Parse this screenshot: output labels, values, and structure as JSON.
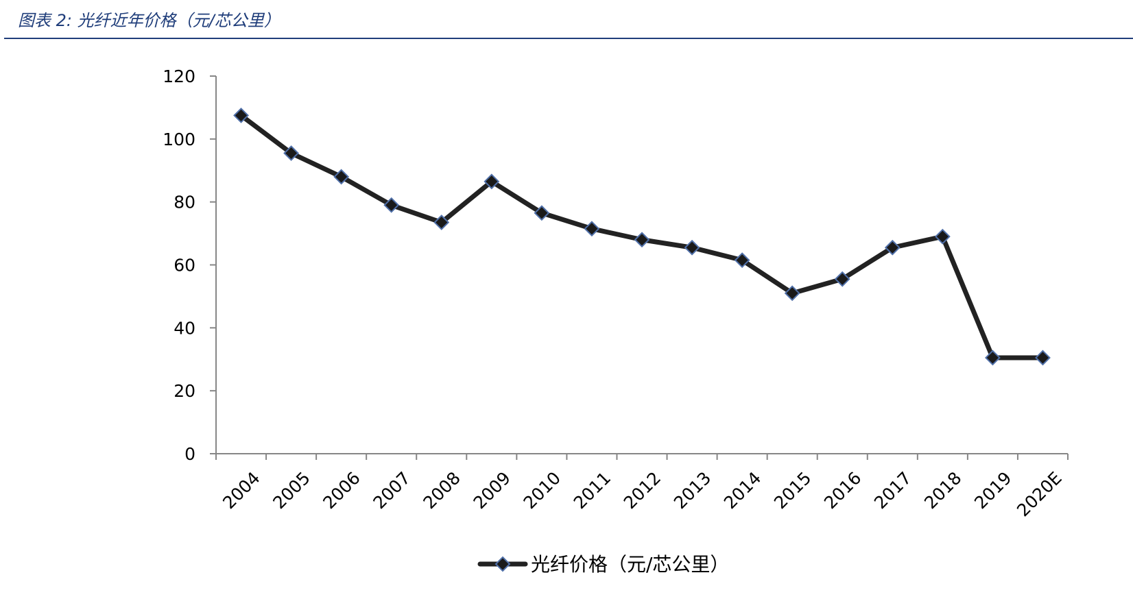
{
  "figure": {
    "title": "图表 2:  光纤近年价格（元/芯公里）"
  },
  "colors": {
    "title": "#1f3d7a",
    "rule": "#1f3d7a",
    "line": "#222222",
    "marker_fill": "#1a1a1a",
    "marker_stroke": "#4f6fa8",
    "axis": "#868686"
  },
  "chart_data": {
    "type": "line",
    "categories": [
      "2004",
      "2005",
      "2006",
      "2007",
      "2008",
      "2009",
      "2010",
      "2011",
      "2012",
      "2013",
      "2014",
      "2015",
      "2016",
      "2017",
      "2018",
      "2019",
      "2020E"
    ],
    "series": [
      {
        "name": "光纤价格（元/芯公里）",
        "values": [
          107.5,
          95.5,
          88,
          79,
          73.5,
          86.5,
          76.5,
          71.5,
          68,
          65.5,
          61.5,
          51,
          55.5,
          65.5,
          69,
          30.5,
          30.5
        ],
        "marker": "diamond"
      }
    ],
    "yticks": [
      0,
      20,
      40,
      60,
      80,
      100,
      120
    ],
    "ylim": [
      0,
      120
    ],
    "xlabel": "",
    "ylabel": "",
    "grid": false,
    "legend": "bottom-center"
  }
}
